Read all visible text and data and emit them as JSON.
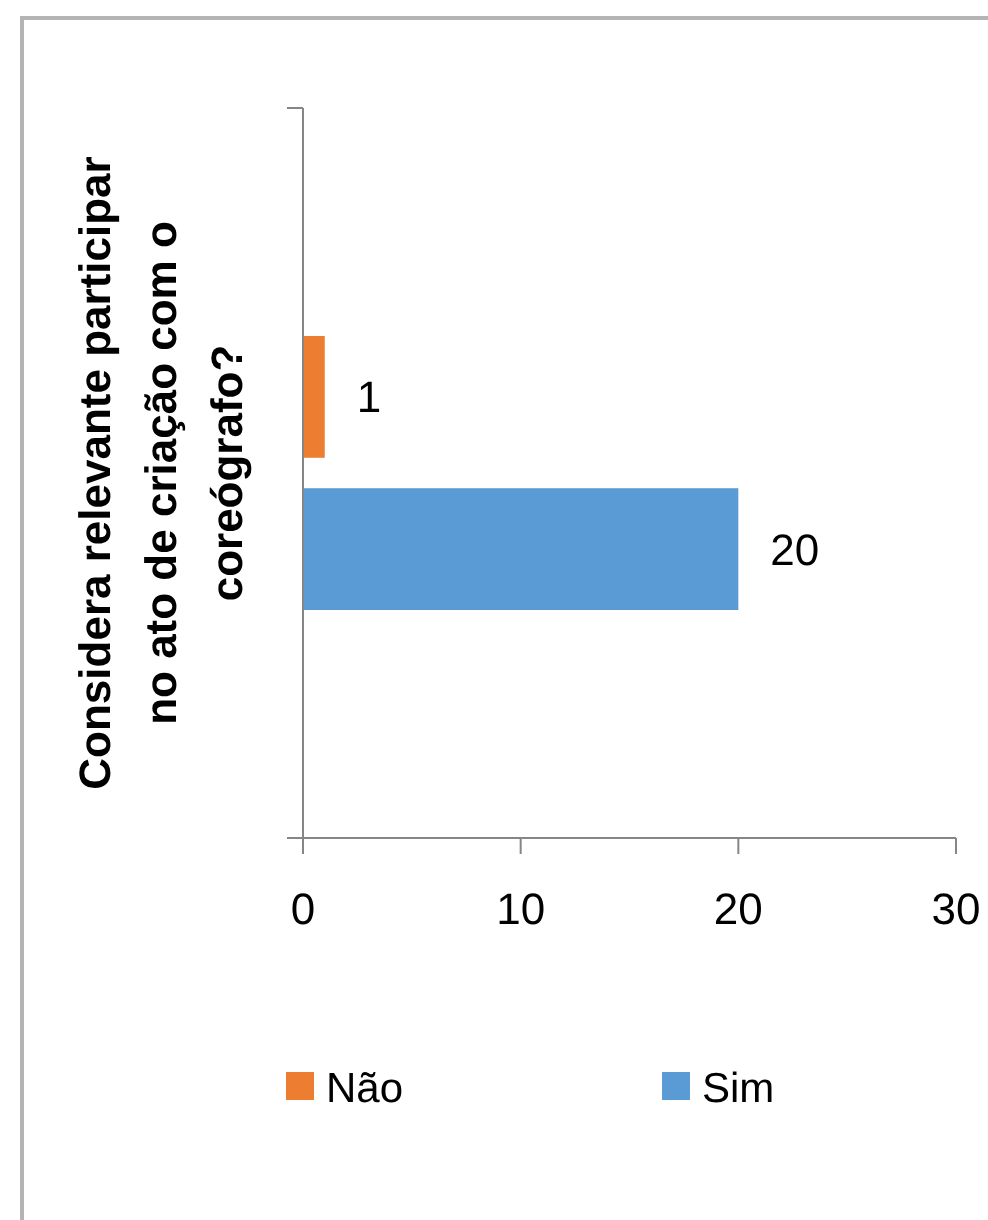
{
  "chart_data": {
    "type": "bar",
    "orientation": "horizontal",
    "ylabel": "Considera relevante participar no ato de criação com o coreógrafo?",
    "categories": [
      null
    ],
    "series": [
      {
        "name": "Não",
        "color": "#ed7d31",
        "values": [
          1
        ]
      },
      {
        "name": "Sim",
        "color": "#5b9bd5",
        "values": [
          20
        ]
      }
    ],
    "xlim": [
      0,
      30
    ],
    "xticks": [
      0,
      10,
      20,
      30
    ],
    "data_labels": true,
    "legend": "bottom"
  }
}
